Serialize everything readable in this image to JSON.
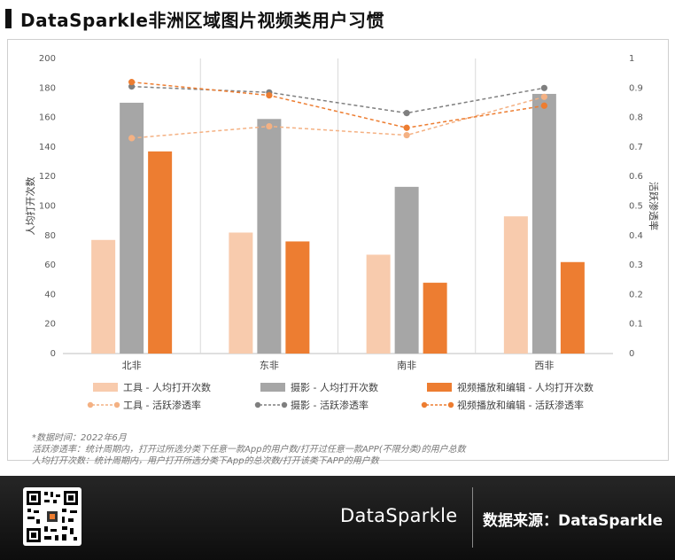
{
  "page_title": "DataSparkle非洲区域图片视频类用户习惯",
  "chart_data": {
    "type": "bar+line",
    "categories": [
      "北非",
      "东非",
      "南非",
      "西非"
    ],
    "ylabel": "人均打开次数",
    "y2label": "活跃渗透率",
    "ylim": [
      0,
      200
    ],
    "y2lim": [
      0,
      1
    ],
    "yticks": [
      "0",
      "20",
      "40",
      "60",
      "80",
      "100",
      "120",
      "140",
      "160",
      "180",
      "200"
    ],
    "y2ticks": [
      "0",
      "0.1",
      "0.2",
      "0.3",
      "0.4",
      "0.5",
      "0.6",
      "0.7",
      "0.8",
      "0.9",
      "1"
    ],
    "grid": "vertical-separators",
    "legend_position": "bottom",
    "bar_series": [
      {
        "name": "工具 - 人均打开次数",
        "color": "#f8cbad",
        "values": [
          77,
          82,
          67,
          93
        ]
      },
      {
        "name": "摄影 - 人均打开次数",
        "color": "#a6a6a6",
        "values": [
          170,
          159,
          113,
          176
        ]
      },
      {
        "name": "视频播放和编辑 - 人均打开次数",
        "color": "#ed7d31",
        "values": [
          137,
          76,
          48,
          62
        ]
      }
    ],
    "line_series": [
      {
        "name": "工具 - 活跃渗透率",
        "color": "#f4b183",
        "values": [
          0.73,
          0.77,
          0.74,
          0.87
        ]
      },
      {
        "name": "摄影 - 活跃渗透率",
        "color": "#7f7f7f",
        "values": [
          0.905,
          0.885,
          0.815,
          0.9
        ]
      },
      {
        "name": "视频播放和编辑 - 活跃渗透率",
        "color": "#ed7d31",
        "values": [
          0.92,
          0.875,
          0.765,
          0.84
        ]
      }
    ]
  },
  "notes": [
    "*数据时间：2022年6月",
    "活跃渗透率：统计周期内，打开过所选分类下任意一款App的用户数/打开过任意一款APP(不限分类)的用户总数",
    "人均打开次数：统计周期内，用户打开所选分类下App的总次数/打开该类下APP的用户数"
  ],
  "footer": {
    "brand": "DataSparkle",
    "source_label": "数据来源：DataSparkle",
    "qr_icon": "qr-code-icon"
  }
}
